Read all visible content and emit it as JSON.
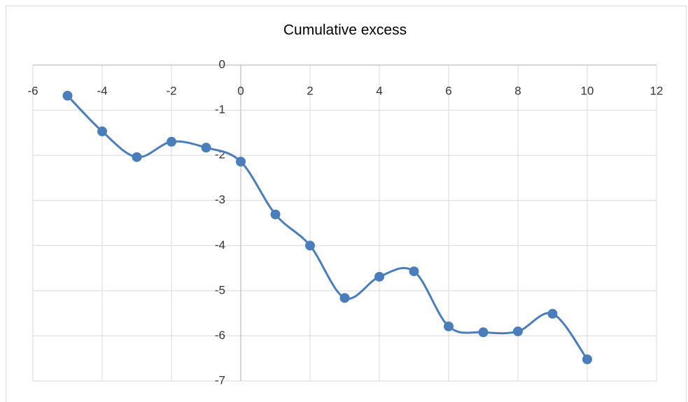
{
  "chart_data": {
    "type": "scatter",
    "title": "Cumulative excess",
    "x": [
      -5,
      -4,
      -3,
      -2,
      -1,
      0,
      1,
      2,
      3,
      4,
      5,
      6,
      7,
      8,
      9,
      10
    ],
    "series": [
      {
        "color": "#4a7ebb",
        "values": [
          -0.68,
          -1.47,
          -2.04,
          -1.7,
          -1.83,
          -2.14,
          -3.31,
          -4.0,
          -5.16,
          -4.69,
          -4.57,
          -5.79,
          -5.92,
          -5.9,
          -5.51,
          -6.52
        ]
      }
    ],
    "xlim": [
      -6,
      12
    ],
    "xticks": [
      -6,
      -4,
      -2,
      0,
      2,
      4,
      6,
      8,
      10,
      12
    ],
    "ylim": [
      -7,
      0
    ],
    "yticks": [
      -7,
      -6,
      -5,
      -4,
      -3,
      -2,
      -1,
      0
    ],
    "grid": true,
    "smooth": true,
    "markers": true
  }
}
